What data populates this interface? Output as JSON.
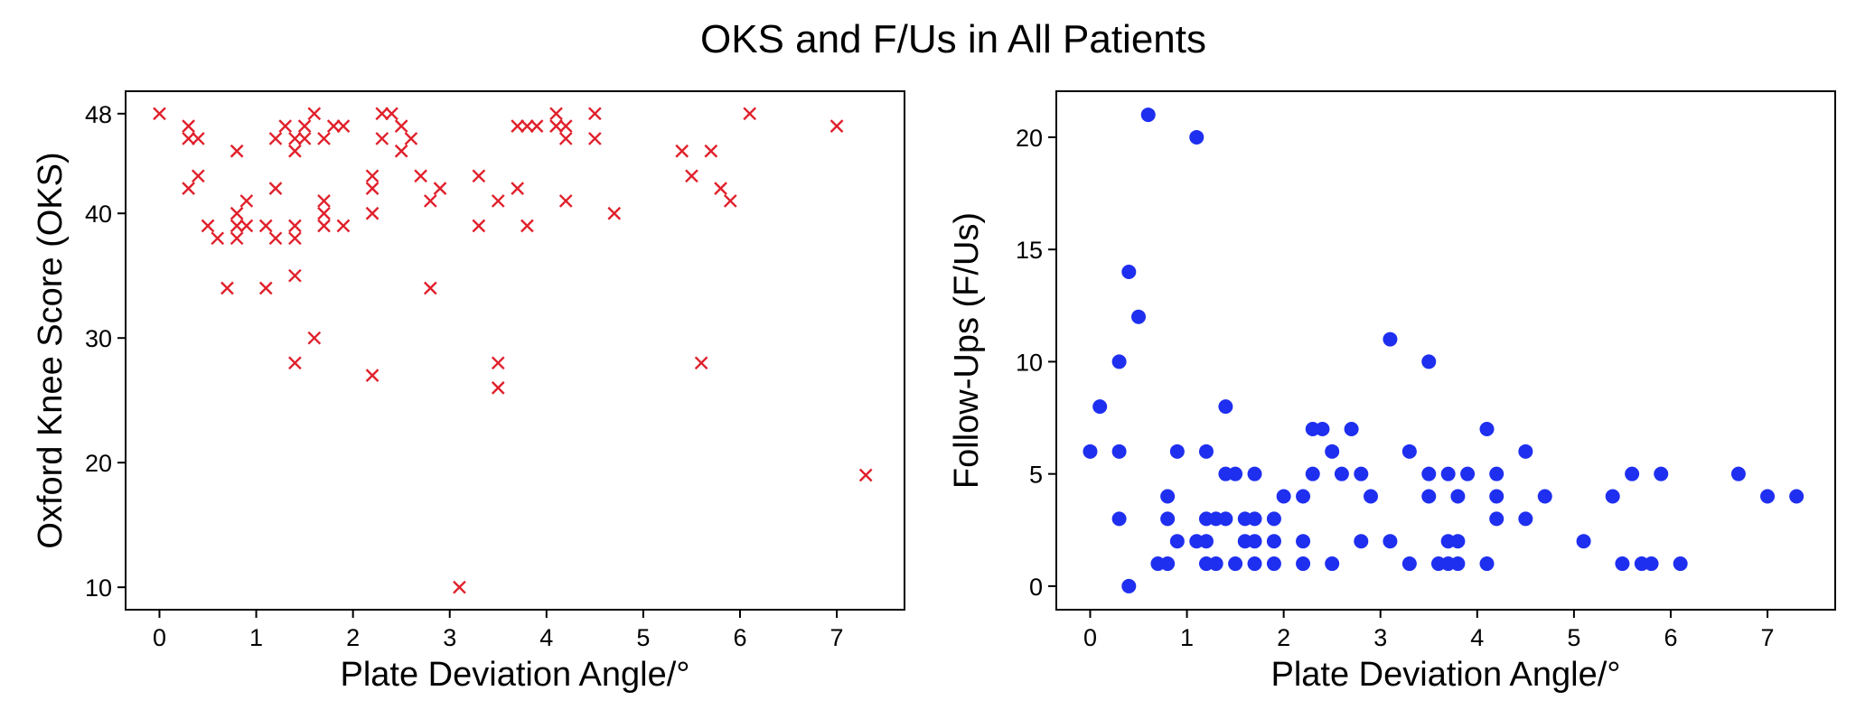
{
  "figure": {
    "title": "OKS and F/Us in All Patients"
  },
  "chart_data": [
    {
      "type": "scatter",
      "marker": "x",
      "color": "#e0202b",
      "xlabel": "Plate Deviation Angle/°",
      "ylabel": "Oxford Knee Score (OKS)",
      "xlim": [
        -0.35,
        7.7
      ],
      "ylim": [
        8.2,
        49.8
      ],
      "xticks": [
        0,
        1,
        2,
        3,
        4,
        5,
        6,
        7
      ],
      "yticks": [
        10,
        20,
        30,
        40,
        48
      ],
      "grid": false,
      "points": [
        [
          0.0,
          48
        ],
        [
          0.3,
          47
        ],
        [
          0.3,
          46
        ],
        [
          0.3,
          42
        ],
        [
          0.4,
          46
        ],
        [
          0.4,
          43
        ],
        [
          0.5,
          39
        ],
        [
          0.6,
          38
        ],
        [
          0.7,
          34
        ],
        [
          0.8,
          45
        ],
        [
          0.8,
          40
        ],
        [
          0.8,
          39
        ],
        [
          0.8,
          38
        ],
        [
          0.9,
          41
        ],
        [
          0.9,
          39
        ],
        [
          1.1,
          39
        ],
        [
          1.1,
          34
        ],
        [
          1.2,
          46
        ],
        [
          1.2,
          42
        ],
        [
          1.2,
          38
        ],
        [
          1.3,
          47
        ],
        [
          1.4,
          46
        ],
        [
          1.4,
          45
        ],
        [
          1.4,
          39
        ],
        [
          1.4,
          38
        ],
        [
          1.4,
          35
        ],
        [
          1.4,
          28
        ],
        [
          1.5,
          47
        ],
        [
          1.5,
          46
        ],
        [
          1.6,
          48
        ],
        [
          1.6,
          30
        ],
        [
          1.7,
          46
        ],
        [
          1.7,
          41
        ],
        [
          1.7,
          40
        ],
        [
          1.7,
          39
        ],
        [
          1.8,
          47
        ],
        [
          1.9,
          47
        ],
        [
          1.9,
          39
        ],
        [
          2.2,
          43
        ],
        [
          2.2,
          42
        ],
        [
          2.2,
          40
        ],
        [
          2.2,
          27
        ],
        [
          2.3,
          48
        ],
        [
          2.3,
          46
        ],
        [
          2.4,
          48
        ],
        [
          2.5,
          47
        ],
        [
          2.5,
          45
        ],
        [
          2.6,
          46
        ],
        [
          2.7,
          43
        ],
        [
          2.8,
          41
        ],
        [
          2.8,
          34
        ],
        [
          2.9,
          42
        ],
        [
          3.1,
          10
        ],
        [
          3.3,
          43
        ],
        [
          3.3,
          39
        ],
        [
          3.5,
          41
        ],
        [
          3.5,
          28
        ],
        [
          3.5,
          26
        ],
        [
          3.7,
          47
        ],
        [
          3.7,
          42
        ],
        [
          3.8,
          47
        ],
        [
          3.8,
          39
        ],
        [
          3.9,
          47
        ],
        [
          4.1,
          48
        ],
        [
          4.1,
          47
        ],
        [
          4.2,
          47
        ],
        [
          4.2,
          46
        ],
        [
          4.2,
          41
        ],
        [
          4.5,
          48
        ],
        [
          4.5,
          46
        ],
        [
          4.7,
          40
        ],
        [
          5.4,
          45
        ],
        [
          5.5,
          43
        ],
        [
          5.6,
          28
        ],
        [
          5.7,
          45
        ],
        [
          5.8,
          42
        ],
        [
          5.9,
          41
        ],
        [
          6.1,
          48
        ],
        [
          7.0,
          47
        ],
        [
          7.3,
          19
        ]
      ]
    },
    {
      "type": "scatter",
      "marker": "o",
      "color": "#1f2ff0",
      "xlabel": "Plate Deviation Angle/°",
      "ylabel": "Follow-Ups (F/Us)",
      "xlim": [
        -0.35,
        7.7
      ],
      "ylim": [
        -1.05,
        22.05
      ],
      "xticks": [
        0,
        1,
        2,
        3,
        4,
        5,
        6,
        7
      ],
      "yticks": [
        0,
        5,
        10,
        15,
        20
      ],
      "grid": false,
      "points": [
        [
          0.0,
          6
        ],
        [
          0.1,
          8
        ],
        [
          0.3,
          10
        ],
        [
          0.3,
          6
        ],
        [
          0.3,
          3
        ],
        [
          0.4,
          14
        ],
        [
          0.4,
          0
        ],
        [
          0.5,
          12
        ],
        [
          0.6,
          21
        ],
        [
          0.7,
          1
        ],
        [
          0.8,
          4
        ],
        [
          0.8,
          3
        ],
        [
          0.8,
          1
        ],
        [
          0.9,
          6
        ],
        [
          0.9,
          2
        ],
        [
          1.1,
          20
        ],
        [
          1.1,
          2
        ],
        [
          1.2,
          6
        ],
        [
          1.2,
          3
        ],
        [
          1.2,
          2
        ],
        [
          1.2,
          1
        ],
        [
          1.3,
          3
        ],
        [
          1.3,
          1
        ],
        [
          1.4,
          8
        ],
        [
          1.4,
          5
        ],
        [
          1.4,
          3
        ],
        [
          1.5,
          5
        ],
        [
          1.5,
          1
        ],
        [
          1.6,
          3
        ],
        [
          1.6,
          2
        ],
        [
          1.7,
          5
        ],
        [
          1.7,
          3
        ],
        [
          1.7,
          2
        ],
        [
          1.7,
          1
        ],
        [
          1.9,
          3
        ],
        [
          1.9,
          2
        ],
        [
          1.9,
          1
        ],
        [
          2.0,
          4
        ],
        [
          2.2,
          4
        ],
        [
          2.2,
          2
        ],
        [
          2.2,
          1
        ],
        [
          2.3,
          7
        ],
        [
          2.3,
          5
        ],
        [
          2.4,
          7
        ],
        [
          2.5,
          6
        ],
        [
          2.5,
          1
        ],
        [
          2.6,
          5
        ],
        [
          2.7,
          7
        ],
        [
          2.8,
          5
        ],
        [
          2.8,
          2
        ],
        [
          2.9,
          4
        ],
        [
          3.1,
          11
        ],
        [
          3.1,
          2
        ],
        [
          3.3,
          6
        ],
        [
          3.3,
          1
        ],
        [
          3.5,
          10
        ],
        [
          3.5,
          5
        ],
        [
          3.5,
          4
        ],
        [
          3.6,
          1
        ],
        [
          3.7,
          5
        ],
        [
          3.7,
          2
        ],
        [
          3.7,
          1
        ],
        [
          3.8,
          4
        ],
        [
          3.8,
          2
        ],
        [
          3.8,
          1
        ],
        [
          3.9,
          5
        ],
        [
          4.1,
          7
        ],
        [
          4.1,
          1
        ],
        [
          4.2,
          5
        ],
        [
          4.2,
          4
        ],
        [
          4.2,
          3
        ],
        [
          4.5,
          6
        ],
        [
          4.5,
          3
        ],
        [
          4.7,
          4
        ],
        [
          5.1,
          2
        ],
        [
          5.4,
          4
        ],
        [
          5.5,
          1
        ],
        [
          5.6,
          5
        ],
        [
          5.7,
          1
        ],
        [
          5.8,
          1
        ],
        [
          5.9,
          5
        ],
        [
          6.1,
          1
        ],
        [
          6.7,
          5
        ],
        [
          7.0,
          4
        ],
        [
          7.3,
          4
        ]
      ]
    }
  ]
}
